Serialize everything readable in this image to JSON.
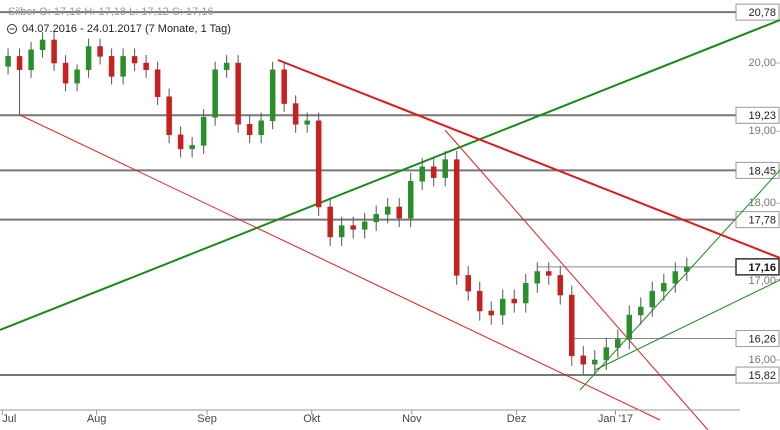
{
  "chart_data": {
    "type": "candlestick",
    "title": "Silber   O: 17,16   H: 17,18   L: 17,12   C: 17,16",
    "subtitle": "04.07.2016 - 24.01.2017   (7 Monate, 1 Tag)",
    "log_scale": true,
    "up_color": "#2a8f2a",
    "down_color": "#c82020",
    "xlim": [
      -0.7,
      67.1
    ],
    "xticks": [
      {
        "value": -0.5,
        "label": "Jul"
      },
      {
        "value": 7.7,
        "label": "Aug"
      },
      {
        "value": 17.3,
        "label": "Sep"
      },
      {
        "value": 26.4,
        "label": "Okt"
      },
      {
        "value": 35.1,
        "label": "Nov"
      },
      {
        "value": 44.2,
        "label": "Dez"
      },
      {
        "value": 52.8,
        "label": "Jan '17"
      }
    ],
    "ylim": [
      15.41,
      20.97
    ],
    "yticks": [
      {
        "value": 20,
        "label": "20,00"
      },
      {
        "value": 19,
        "label": "19,00"
      },
      {
        "value": 18,
        "label": "18,00"
      },
      {
        "value": 17,
        "label": "17,00"
      },
      {
        "value": 16,
        "label": "16,00"
      }
    ],
    "levels": [
      {
        "value": 20.78,
        "label": "20,78"
      },
      {
        "value": 19.23,
        "label": "19,23"
      },
      {
        "value": 18.45,
        "label": "18,45"
      },
      {
        "value": 17.78,
        "label": "17,78"
      },
      {
        "value": 17.16,
        "label": "17,16"
      },
      {
        "value": 16.26,
        "label": "16,26"
      },
      {
        "value": 15.82,
        "label": "15,82"
      }
    ],
    "open": [
      19.95,
      20.1,
      19.9,
      20.2,
      20.35,
      20.0,
      19.7,
      19.9,
      20.25,
      20.1,
      19.8,
      20.1,
      20.0,
      19.9,
      19.5,
      18.95,
      18.75,
      18.8,
      19.2,
      19.9,
      20.0,
      19.1,
      18.95,
      19.15,
      19.9,
      19.4,
      19.1,
      19.15,
      17.95,
      17.55,
      17.7,
      17.65,
      17.75,
      17.85,
      17.95,
      17.8,
      18.3,
      18.5,
      18.35,
      18.6,
      17.05,
      16.85,
      16.6,
      16.55,
      16.75,
      16.7,
      16.95,
      17.1,
      17.05,
      16.8,
      16.05,
      15.95,
      16.0,
      16.15,
      16.25,
      16.55,
      16.65,
      16.85,
      16.95,
      17.1
    ],
    "high": [
      20.22,
      20.22,
      20.32,
      20.47,
      20.47,
      20.12,
      19.98,
      20.37,
      20.37,
      20.22,
      20.22,
      20.22,
      20.12,
      20.02,
      19.62,
      19.07,
      18.92,
      19.32,
      20.02,
      20.12,
      20.12,
      19.22,
      19.27,
      20.02,
      20.02,
      19.52,
      19.27,
      19.27,
      18.07,
      17.82,
      17.82,
      17.87,
      17.97,
      18.07,
      18.07,
      18.42,
      18.62,
      18.62,
      18.72,
      18.72,
      17.17,
      16.97,
      16.72,
      16.87,
      16.87,
      17.07,
      17.22,
      17.22,
      17.17,
      16.92,
      16.17,
      16.12,
      16.27,
      16.37,
      16.67,
      16.77,
      16.97,
      17.07,
      17.22,
      17.28
    ],
    "low": [
      19.83,
      19.23,
      19.78,
      20.08,
      19.88,
      19.58,
      19.58,
      19.78,
      19.98,
      19.68,
      19.68,
      19.88,
      19.78,
      19.38,
      18.83,
      18.63,
      18.63,
      18.68,
      19.08,
      19.78,
      18.98,
      18.83,
      18.83,
      19.03,
      19.28,
      18.98,
      18.98,
      17.83,
      17.43,
      17.43,
      17.53,
      17.53,
      17.63,
      17.73,
      17.68,
      17.68,
      18.18,
      18.23,
      18.23,
      16.93,
      16.73,
      16.48,
      16.43,
      16.43,
      16.58,
      16.58,
      16.83,
      16.93,
      16.68,
      15.93,
      15.83,
      15.83,
      15.88,
      16.03,
      16.13,
      16.43,
      16.53,
      16.73,
      16.83,
      16.98
    ],
    "close": [
      20.1,
      19.9,
      20.2,
      20.35,
      20.0,
      19.7,
      19.9,
      20.25,
      20.1,
      19.8,
      20.1,
      20.0,
      19.9,
      19.5,
      18.95,
      18.75,
      18.8,
      19.2,
      19.9,
      20.0,
      19.1,
      18.95,
      19.15,
      19.9,
      19.4,
      19.1,
      19.15,
      17.95,
      17.55,
      17.7,
      17.65,
      17.75,
      17.85,
      17.95,
      17.8,
      18.3,
      18.5,
      18.35,
      18.6,
      17.05,
      16.85,
      16.6,
      16.55,
      16.75,
      16.7,
      16.95,
      17.1,
      17.05,
      16.8,
      16.05,
      15.95,
      16.0,
      16.15,
      16.25,
      16.55,
      16.65,
      16.85,
      16.95,
      17.1,
      17.16
    ]
  }
}
